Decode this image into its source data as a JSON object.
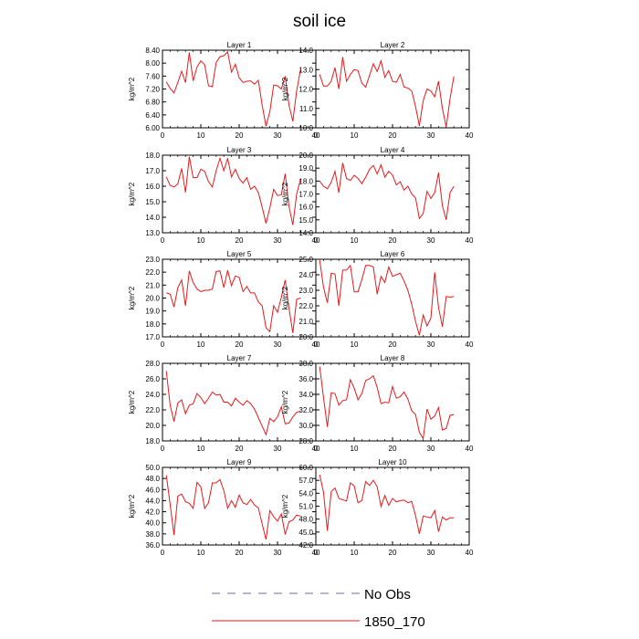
{
  "title": "soil ice",
  "legend": [
    {
      "label": "No Obs",
      "color": "#6b6bb0",
      "dashed": true
    },
    {
      "label": "1850_170",
      "color": "#e8191c",
      "dashed": false
    }
  ],
  "chart_data": [
    {
      "type": "line",
      "title": "Layer 1",
      "ylabel": "kg/m^2",
      "xlim": [
        0,
        40
      ],
      "xticks": [
        0,
        10,
        20,
        30,
        40
      ],
      "ylim": [
        6.0,
        8.4
      ],
      "yticks": [
        "6.00",
        "6.40",
        "6.80",
        "7.20",
        "7.60",
        "8.00",
        "8.40"
      ],
      "series": [
        {
          "color": "#e8191c",
          "x": [
            1,
            2,
            3,
            4,
            5,
            6,
            7,
            8,
            9,
            10,
            11,
            12,
            13,
            14,
            15,
            16,
            17,
            18,
            19,
            20,
            21,
            22,
            23,
            24,
            25,
            26,
            27,
            28,
            29,
            30,
            31,
            32,
            33,
            34,
            35,
            36
          ],
          "values": [
            7.42,
            7.22,
            7.08,
            7.4,
            7.75,
            7.4,
            8.33,
            7.45,
            7.88,
            8.07,
            7.95,
            7.3,
            7.27,
            8.02,
            8.2,
            8.23,
            8.35,
            7.72,
            7.97,
            7.55,
            7.4,
            7.44,
            7.45,
            7.35,
            7.47,
            6.7,
            6.05,
            6.5,
            7.32,
            7.3,
            7.2,
            7.6,
            6.7,
            6.2,
            7.15,
            7.8
          ]
        }
      ]
    },
    {
      "type": "line",
      "title": "Layer 2",
      "ylabel": "kg/m^2",
      "xlim": [
        0,
        40
      ],
      "xticks": [
        0,
        10,
        20,
        30,
        40
      ],
      "ylim": [
        10.0,
        14.0
      ],
      "yticks": [
        "10.0",
        "11.0",
        "12.0",
        "13.0",
        "14.0"
      ],
      "series": [
        {
          "color": "#e8191c",
          "x": [
            1,
            2,
            3,
            4,
            5,
            6,
            7,
            8,
            9,
            10,
            11,
            12,
            13,
            14,
            15,
            16,
            17,
            18,
            19,
            20,
            21,
            22,
            23,
            24,
            25,
            26,
            27,
            28,
            29,
            30,
            31,
            32,
            33,
            34,
            35,
            36
          ],
          "values": [
            12.75,
            12.15,
            12.15,
            12.4,
            13.1,
            12.0,
            13.65,
            12.4,
            12.75,
            13.0,
            12.95,
            12.3,
            12.1,
            12.7,
            13.3,
            12.9,
            13.45,
            12.6,
            12.95,
            12.4,
            12.35,
            12.75,
            12.1,
            12.05,
            11.9,
            11.1,
            10.1,
            11.4,
            12.0,
            11.9,
            11.6,
            12.4,
            11.0,
            10.05,
            11.5,
            12.65
          ]
        }
      ]
    },
    {
      "type": "line",
      "title": "Layer 3",
      "ylabel": "kg/m^2",
      "xlim": [
        0,
        40
      ],
      "xticks": [
        0,
        10,
        20,
        30,
        40
      ],
      "ylim": [
        13.0,
        18.0
      ],
      "yticks": [
        "13.0",
        "14.0",
        "15.0",
        "16.0",
        "17.0",
        "18.0"
      ],
      "series": [
        {
          "color": "#e8191c",
          "x": [
            1,
            2,
            3,
            4,
            5,
            6,
            7,
            8,
            9,
            10,
            11,
            12,
            13,
            14,
            15,
            16,
            17,
            18,
            19,
            20,
            21,
            22,
            23,
            24,
            25,
            26,
            27,
            28,
            29,
            30,
            31,
            32,
            33,
            34,
            35,
            36
          ],
          "values": [
            16.6,
            16.05,
            15.95,
            16.15,
            17.15,
            15.6,
            17.9,
            16.55,
            16.55,
            17.1,
            16.95,
            16.3,
            15.95,
            17.0,
            17.8,
            17.0,
            17.8,
            16.6,
            17.1,
            16.5,
            16.2,
            16.55,
            15.8,
            16.0,
            15.6,
            14.65,
            13.6,
            14.6,
            15.8,
            15.4,
            15.45,
            16.8,
            14.7,
            13.5,
            15.5,
            16.45
          ]
        }
      ]
    },
    {
      "type": "line",
      "title": "Layer 4",
      "ylabel": "kg/m^2",
      "xlim": [
        0,
        40
      ],
      "xticks": [
        0,
        10,
        20,
        30,
        40
      ],
      "ylim": [
        14.0,
        20.0
      ],
      "yticks": [
        "14.0",
        "15.0",
        "16.0",
        "17.0",
        "18.0",
        "19.0",
        "20.0"
      ],
      "series": [
        {
          "color": "#e8191c",
          "x": [
            1,
            2,
            3,
            4,
            5,
            6,
            7,
            8,
            9,
            10,
            11,
            12,
            13,
            14,
            15,
            16,
            17,
            18,
            19,
            20,
            21,
            22,
            23,
            24,
            25,
            26,
            27,
            28,
            29,
            30,
            31,
            32,
            33,
            34,
            35,
            36
          ],
          "values": [
            18.0,
            17.6,
            17.4,
            17.9,
            18.75,
            17.1,
            19.4,
            18.2,
            18.05,
            18.45,
            18.2,
            17.8,
            18.3,
            18.9,
            19.2,
            18.55,
            19.25,
            18.3,
            18.75,
            18.45,
            17.7,
            17.95,
            17.3,
            17.6,
            17.0,
            16.7,
            15.1,
            15.5,
            17.2,
            16.65,
            17.1,
            18.65,
            16.1,
            15.0,
            17.1,
            17.6
          ]
        }
      ]
    },
    {
      "type": "line",
      "title": "Layer 5",
      "ylabel": "kg/m^2",
      "xlim": [
        0,
        40
      ],
      "xticks": [
        0,
        10,
        20,
        30,
        40
      ],
      "ylim": [
        17.0,
        23.0
      ],
      "yticks": [
        "17.0",
        "18.0",
        "19.0",
        "20.0",
        "21.0",
        "22.0",
        "23.0"
      ],
      "series": [
        {
          "color": "#e8191c",
          "x": [
            1,
            2,
            3,
            4,
            5,
            6,
            7,
            8,
            9,
            10,
            11,
            12,
            13,
            14,
            15,
            16,
            17,
            18,
            19,
            20,
            21,
            22,
            23,
            24,
            25,
            26,
            27,
            28,
            29,
            30,
            31,
            32,
            33,
            34,
            35,
            36
          ],
          "values": [
            20.4,
            20.3,
            19.3,
            20.8,
            21.4,
            19.4,
            22.1,
            21.2,
            20.7,
            20.5,
            20.6,
            20.6,
            20.7,
            22.05,
            22.1,
            20.8,
            22.15,
            20.95,
            21.7,
            21.6,
            20.5,
            20.9,
            20.4,
            20.4,
            19.7,
            19.4,
            17.7,
            17.4,
            19.4,
            18.9,
            20.05,
            21.4,
            19.2,
            17.3,
            19.9,
            20.0
          ]
        }
      ]
    },
    {
      "type": "line",
      "title": "Layer 6",
      "ylabel": "kg/m^2",
      "xlim": [
        0,
        40
      ],
      "xticks": [
        0,
        10,
        20,
        30,
        40
      ],
      "ylim": [
        20.0,
        25.0
      ],
      "yticks": [
        "20.0",
        "21.0",
        "22.0",
        "23.0",
        "24.0",
        "25.0"
      ],
      "series": [
        {
          "color": "#e8191c",
          "x": [
            1,
            2,
            3,
            4,
            5,
            6,
            7,
            8,
            9,
            10,
            11,
            12,
            13,
            14,
            15,
            16,
            17,
            18,
            19,
            20,
            21,
            22,
            23,
            24,
            25,
            26,
            27,
            28,
            29,
            30,
            31,
            32,
            33,
            34,
            35,
            36
          ],
          "values": [
            24.95,
            23.2,
            22.2,
            24.1,
            24.05,
            22.0,
            24.3,
            24.3,
            24.6,
            22.9,
            22.9,
            23.7,
            24.6,
            24.6,
            24.5,
            22.75,
            23.9,
            23.5,
            24.5,
            23.9,
            24.0,
            24.1,
            23.6,
            23.0,
            22.1,
            21.0,
            20.1,
            21.4,
            20.7,
            21.2,
            24.15,
            21.9,
            20.65,
            22.6,
            22.55,
            22.6
          ]
        }
      ]
    },
    {
      "type": "line",
      "title": "Layer 7",
      "ylabel": "kg/m^2",
      "xlim": [
        0,
        40
      ],
      "xticks": [
        0,
        10,
        20,
        30,
        40
      ],
      "ylim": [
        18.0,
        28.0
      ],
      "yticks": [
        "18.0",
        "20.0",
        "22.0",
        "24.0",
        "26.0",
        "28.0"
      ],
      "series": [
        {
          "color": "#e8191c",
          "x": [
            1,
            2,
            3,
            4,
            5,
            6,
            7,
            8,
            9,
            10,
            11,
            12,
            13,
            14,
            15,
            16,
            17,
            18,
            19,
            20,
            21,
            22,
            23,
            24,
            25,
            26,
            27,
            28,
            29,
            30,
            31,
            32,
            33,
            34,
            35,
            36
          ],
          "values": [
            27.0,
            22.6,
            20.5,
            22.9,
            23.3,
            21.5,
            22.6,
            22.8,
            24.1,
            23.6,
            22.8,
            23.5,
            24.3,
            23.9,
            24.0,
            23.0,
            23.0,
            22.5,
            23.5,
            23.0,
            22.6,
            23.2,
            22.8,
            22.1,
            21.0,
            19.9,
            18.8,
            20.9,
            20.5,
            21.1,
            22.4,
            20.2,
            20.3,
            21.1,
            21.7,
            21.8
          ]
        }
      ]
    },
    {
      "type": "line",
      "title": "Layer 8",
      "ylabel": "kg/m^2",
      "xlim": [
        0,
        40
      ],
      "xticks": [
        0,
        10,
        20,
        30,
        40
      ],
      "ylim": [
        28.0,
        38.0
      ],
      "yticks": [
        "28.0",
        "30.0",
        "32.0",
        "34.0",
        "36.0",
        "38.0"
      ],
      "series": [
        {
          "color": "#e8191c",
          "x": [
            1,
            2,
            3,
            4,
            5,
            6,
            7,
            8,
            9,
            10,
            11,
            12,
            13,
            14,
            15,
            16,
            17,
            18,
            19,
            20,
            21,
            22,
            23,
            24,
            25,
            26,
            27,
            28,
            29,
            30,
            31,
            32,
            33,
            34,
            35,
            36
          ],
          "values": [
            37.6,
            33.6,
            29.8,
            34.2,
            34.1,
            32.6,
            33.2,
            33.3,
            35.9,
            34.8,
            33.3,
            34.1,
            35.8,
            36.0,
            36.4,
            34.9,
            32.8,
            33.0,
            32.9,
            35.0,
            33.5,
            33.7,
            34.3,
            33.4,
            31.9,
            31.4,
            29.1,
            28.3,
            32.1,
            30.8,
            31.2,
            32.3,
            29.4,
            29.6,
            31.3,
            31.4
          ]
        }
      ]
    },
    {
      "type": "line",
      "title": "Layer 9",
      "ylabel": "kg/m^2",
      "xlim": [
        0,
        40
      ],
      "xticks": [
        0,
        10,
        20,
        30,
        40
      ],
      "ylim": [
        36.0,
        50.0
      ],
      "yticks": [
        "36.0",
        "38.0",
        "40.0",
        "42.0",
        "44.0",
        "46.0",
        "48.0",
        "50.0"
      ],
      "series": [
        {
          "color": "#e8191c",
          "x": [
            1,
            2,
            3,
            4,
            5,
            6,
            7,
            8,
            9,
            10,
            11,
            12,
            13,
            14,
            15,
            16,
            17,
            18,
            19,
            20,
            21,
            22,
            23,
            24,
            25,
            26,
            27,
            28,
            29,
            30,
            31,
            32,
            33,
            34,
            35,
            36
          ],
          "values": [
            48.6,
            43.3,
            37.8,
            44.8,
            45.2,
            43.8,
            43.5,
            42.6,
            47.3,
            46.5,
            42.6,
            43.6,
            47.2,
            47.2,
            47.8,
            45.8,
            42.6,
            44.0,
            42.8,
            45.0,
            43.6,
            43.3,
            44.2,
            43.2,
            42.7,
            39.8,
            37.0,
            42.2,
            41.1,
            40.3,
            41.6,
            37.9,
            40.2,
            40.5,
            41.4,
            41.2
          ]
        }
      ]
    },
    {
      "type": "line",
      "title": "Layer 10",
      "ylabel": "kg/m^2",
      "xlim": [
        0,
        40
      ],
      "xticks": [
        0,
        10,
        20,
        30,
        40
      ],
      "ylim": [
        42.0,
        60.0
      ],
      "yticks": [
        "42.0",
        "45.0",
        "48.0",
        "51.0",
        "54.0",
        "57.0",
        "60.0"
      ],
      "series": [
        {
          "color": "#e8191c",
          "x": [
            1,
            2,
            3,
            4,
            5,
            6,
            7,
            8,
            9,
            10,
            11,
            12,
            13,
            14,
            15,
            16,
            17,
            18,
            19,
            20,
            21,
            22,
            23,
            24,
            25,
            26,
            27,
            28,
            29,
            30,
            31,
            32,
            33,
            34,
            35,
            36
          ],
          "values": [
            58.3,
            54.2,
            45.3,
            54.4,
            55.2,
            52.8,
            52.5,
            52.2,
            56.4,
            55.7,
            51.8,
            52.3,
            56.7,
            55.8,
            57.0,
            55.5,
            50.9,
            53.5,
            51.2,
            52.8,
            52.0,
            52.3,
            52.4,
            51.8,
            52.1,
            48.8,
            44.6,
            48.7,
            48.5,
            48.3,
            50.0,
            45.1,
            48.5,
            47.8,
            48.3,
            48.3
          ]
        }
      ]
    }
  ]
}
